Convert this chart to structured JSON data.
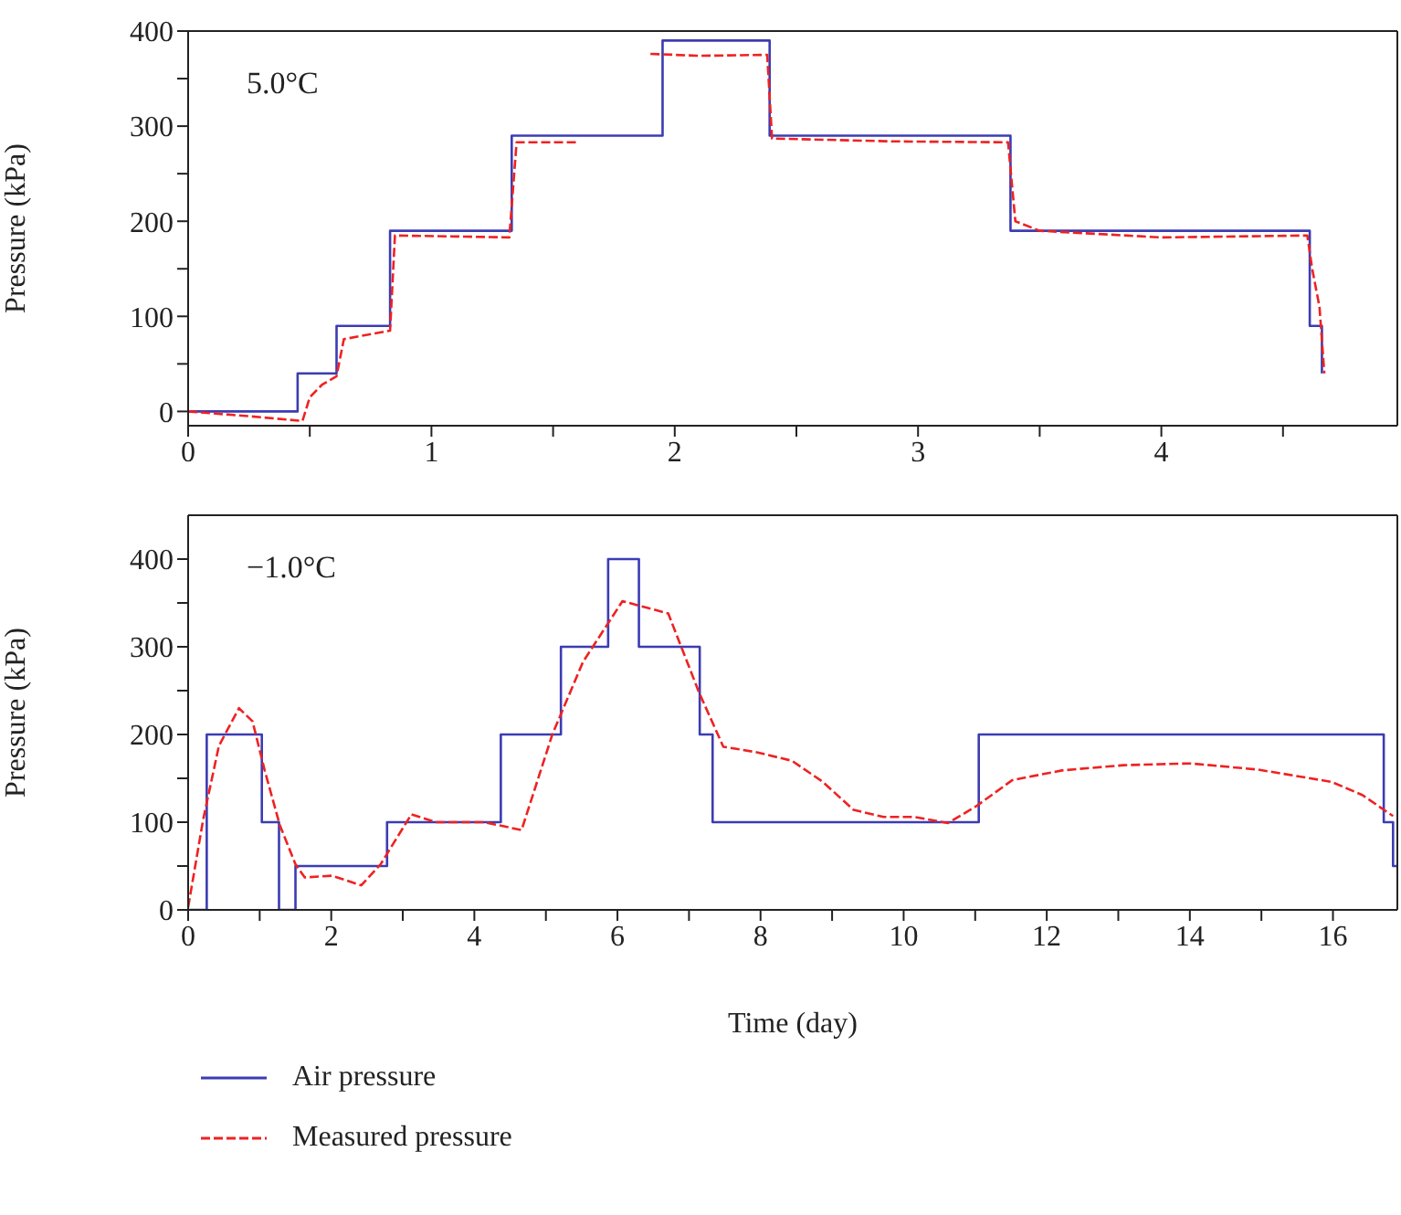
{
  "chart_data": [
    {
      "type": "step",
      "ylabel": "Pressure (kPa)",
      "annotations": [
        "5.0°C"
      ],
      "xlim": [
        0,
        4.97
      ],
      "xticks": [
        0,
        {
          "value": 0.5,
          "label": null
        },
        1,
        {
          "value": 1.5,
          "label": null
        },
        2,
        {
          "value": 2.5,
          "label": null
        },
        3,
        {
          "value": 3.5,
          "label": null
        },
        4,
        {
          "value": 4.5,
          "label": null
        }
      ],
      "ylim": [
        -15,
        400
      ],
      "yticks": [
        0,
        {
          "value": 50,
          "label": null
        },
        100,
        {
          "value": 150,
          "label": null
        },
        200,
        {
          "value": 250,
          "label": null
        },
        300,
        {
          "value": 350,
          "label": null
        },
        400
      ],
      "series": [
        {
          "type": "step",
          "color": "#3c3cb4",
          "line_style": "solid",
          "x": [
            0,
            0.45,
            0.61,
            0.83,
            1.33,
            1.95,
            2.39,
            3.38,
            4.61,
            4.66
          ],
          "values": [
            0,
            40,
            90,
            190,
            290,
            390,
            290,
            190,
            90,
            40
          ]
        },
        {
          "type": "line",
          "color": "#ee2222",
          "line_style": "dashed",
          "x": [
            0,
            0.25,
            0.47,
            0.5,
            0.55,
            0.61,
            0.64,
            0.83,
            0.85,
            1.1,
            1.32,
            1.35,
            1.6,
            1.75,
            1.9,
            2.1,
            2.38,
            2.4,
            2.9,
            3.37,
            3.4,
            3.5,
            4.0,
            4.6,
            4.62,
            4.65,
            4.67
          ],
          "values": [
            0,
            -5,
            -10,
            15,
            28,
            37,
            76,
            85,
            185,
            184,
            183,
            283,
            283,
            null,
            376,
            374,
            375,
            287,
            284,
            283,
            200,
            190,
            183,
            185,
            150,
            110,
            40
          ]
        }
      ]
    },
    {
      "type": "step",
      "xlabel": "Time (day)",
      "ylabel": "Pressure (kPa)",
      "annotations": [
        "−1.0°C"
      ],
      "legend": "bottom",
      "xlim": [
        0,
        16.9
      ],
      "xticks": [
        0,
        {
          "value": 1,
          "label": null
        },
        2,
        {
          "value": 3,
          "label": null
        },
        4,
        {
          "value": 5,
          "label": null
        },
        6,
        {
          "value": 7,
          "label": null
        },
        8,
        {
          "value": 9,
          "label": null
        },
        10,
        {
          "value": 11,
          "label": null
        },
        12,
        {
          "value": 13,
          "label": null
        },
        14,
        {
          "value": 15,
          "label": null
        },
        16
      ],
      "ylim": [
        0,
        450
      ],
      "yticks": [
        0,
        {
          "value": 50,
          "label": null
        },
        100,
        {
          "value": 150,
          "label": null
        },
        200,
        {
          "value": 250,
          "label": null
        },
        300,
        {
          "value": 350,
          "label": null
        },
        400
      ],
      "series": [
        {
          "name": "Air pressure",
          "type": "step",
          "color": "#3c3cb4",
          "line_style": "solid",
          "x": [
            0,
            0.26,
            1.03,
            1.27,
            1.5,
            2.78,
            4.37,
            5.21,
            5.87,
            6.3,
            7.15,
            7.33,
            11.05,
            16.71,
            16.84,
            16.9
          ],
          "values": [
            0,
            200,
            100,
            0,
            50,
            100,
            200,
            300,
            400,
            300,
            200,
            100,
            200,
            100,
            50,
            50
          ]
        },
        {
          "name": "Measured pressure",
          "type": "line",
          "color": "#ee2222",
          "line_style": "dashed",
          "x": [
            0,
            0.21,
            0.43,
            0.71,
            0.9,
            1.07,
            1.28,
            1.5,
            1.63,
            2.01,
            2.42,
            2.69,
            3.12,
            3.46,
            4.14,
            4.66,
            5.09,
            5.52,
            6.07,
            6.71,
            7.14,
            7.48,
            7.93,
            8.44,
            8.87,
            9.3,
            9.72,
            10.15,
            10.62,
            11.01,
            11.52,
            12.21,
            13.07,
            14.01,
            14.95,
            15.98,
            16.41,
            16.84
          ],
          "values": [
            3,
            103,
            187,
            230,
            215,
            159,
            97,
            52,
            37,
            39,
            28,
            52,
            109,
            100,
            100,
            91,
            200,
            283,
            352,
            338,
            248,
            186,
            180,
            170,
            146,
            114,
            106,
            106,
            99,
            118,
            148,
            159,
            165,
            167,
            160,
            146,
            131,
            107
          ]
        }
      ]
    }
  ]
}
